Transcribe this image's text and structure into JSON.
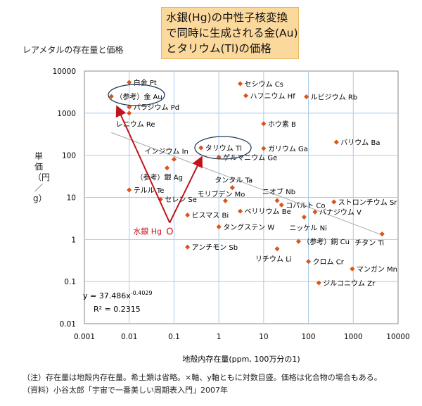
{
  "chart_data": {
    "type": "scatter",
    "title": "水銀(Hg)の中性子核変換\nで同時に生成される金(Au)\nとタリウム(Tl)の価格",
    "subtitle": "レアメタルの存在量と価格",
    "xlabel": "地殻内存在量(ppm, 100万分の1)",
    "ylabel": "単価（円／g）",
    "xscale": "log",
    "yscale": "log",
    "xlim": [
      0.001,
      10000
    ],
    "ylim": [
      0.01,
      10000
    ],
    "x_ticks": [
      "0.001",
      "0.01",
      "0.1",
      "1",
      "10",
      "100",
      "1000",
      "10000"
    ],
    "y_ticks": [
      "10000",
      "1000",
      "100",
      "10",
      "1",
      "0.1",
      "0.01"
    ],
    "grid": true,
    "marker_color": "#d9541a",
    "grid_color": "#a9cbe8",
    "trendline": {
      "equation": "y = 37.486x",
      "exponent": "-0.4029",
      "r2": "R² = 0.2315",
      "a": 37.486,
      "b": -0.4029,
      "color": "#aaaaaa"
    },
    "points": [
      {
        "label": "白金 Pt",
        "x": 0.01,
        "y": 5400
      },
      {
        "label": "（参考）金 Au",
        "x": 0.004,
        "y": 2500
      },
      {
        "label": "パラジウム Pd",
        "x": 0.01,
        "y": 1400
      },
      {
        "label": "レニウム Re",
        "x": 0.01,
        "y": 1000
      },
      {
        "label": "インジウム In",
        "x": 0.1,
        "y": 80
      },
      {
        "label": "（参考）銀 Ag",
        "x": 0.07,
        "y": 50
      },
      {
        "label": "テルル Te",
        "x": 0.01,
        "y": 15
      },
      {
        "label": "セレン Se",
        "x": 0.05,
        "y": 9
      },
      {
        "label": "タリウム Tl",
        "x": 0.4,
        "y": 150
      },
      {
        "label": "ゲルマニウム Ge",
        "x": 1,
        "y": 90
      },
      {
        "label": "タンタル Ta",
        "x": 2,
        "y": 17
      },
      {
        "label": "モリブデン Mo",
        "x": 1.4,
        "y": 8.3
      },
      {
        "label": "ビスマス Bi",
        "x": 0.2,
        "y": 3.8
      },
      {
        "label": "タングステン W",
        "x": 1,
        "y": 2
      },
      {
        "label": "ベリリウム Be",
        "x": 3,
        "y": 4.7
      },
      {
        "label": "ニオブ Nb",
        "x": 20,
        "y": 8.4
      },
      {
        "label": "コバルト Co",
        "x": 25,
        "y": 6.6
      },
      {
        "label": "ニッケル Ni",
        "x": 80,
        "y": 3.4
      },
      {
        "label": "ストロンチウム Sr",
        "x": 370,
        "y": 7.8
      },
      {
        "label": "バナジウム V",
        "x": 140,
        "y": 4.5
      },
      {
        "label": "チタン Ti",
        "x": 4400,
        "y": 1.35
      },
      {
        "label": "（参考）銅 Cu",
        "x": 60,
        "y": 0.9
      },
      {
        "label": "リチウム Li",
        "x": 20,
        "y": 0.6
      },
      {
        "label": "クロム Cr",
        "x": 100,
        "y": 0.3
      },
      {
        "label": "マンガン Mn",
        "x": 950,
        "y": 0.2
      },
      {
        "label": "ジルコニウム Zr",
        "x": 170,
        "y": 0.093
      },
      {
        "label": "アンチモン Sb",
        "x": 0.2,
        "y": 0.66
      },
      {
        "label": "セシウム Cs",
        "x": 3,
        "y": 5000
      },
      {
        "label": "ハフニウム Hf",
        "x": 4,
        "y": 2600
      },
      {
        "label": "ルビジウム Rb",
        "x": 90,
        "y": 2450
      },
      {
        "label": "ホウ素 B",
        "x": 10,
        "y": 560
      },
      {
        "label": "ガリウム Ga",
        "x": 10,
        "y": 145
      },
      {
        "label": "バリウム Ba",
        "x": 420,
        "y": 205
      }
    ],
    "mercury": {
      "label": "水銀 Hg",
      "marker": "O",
      "x": 0.08,
      "y": 2.5,
      "color": "#c0141c"
    },
    "highlight_color": "#1f3a5f"
  },
  "notes": [
    "（注）存在量は地殻内存在量。希土類は省略。×軸、y軸ともに対数目盛。価格は化合物の場合もある。",
    "（資料）小谷太郎「宇宙で一番美しい周期表入門」2007年"
  ]
}
